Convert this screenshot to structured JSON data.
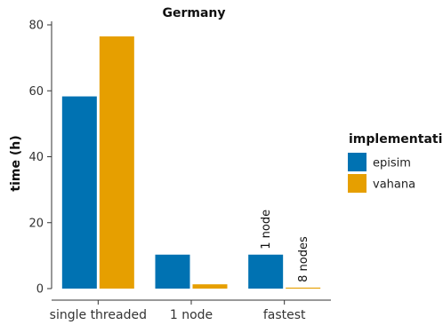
{
  "chart_data": {
    "type": "bar",
    "title": "Germany",
    "xlabel": "",
    "ylabel": "time (h)",
    "categories": [
      "single threaded",
      "1 node",
      "fastest"
    ],
    "series": [
      {
        "name": "episim",
        "color": "#0072B2",
        "values": [
          58.3,
          10.3,
          10.3
        ]
      },
      {
        "name": "vahana",
        "color": "#E69F00",
        "values": [
          76.5,
          1.3,
          0.3
        ]
      }
    ],
    "ylim": [
      0,
      80
    ],
    "yticks": [
      0,
      20,
      40,
      60,
      80
    ],
    "grid": false,
    "legend": {
      "title": "implementation",
      "position": "right"
    },
    "annotations": [
      {
        "category": "fastest",
        "series": "episim",
        "text": "1 node"
      },
      {
        "category": "fastest",
        "series": "vahana",
        "text": "8 nodes"
      }
    ]
  }
}
